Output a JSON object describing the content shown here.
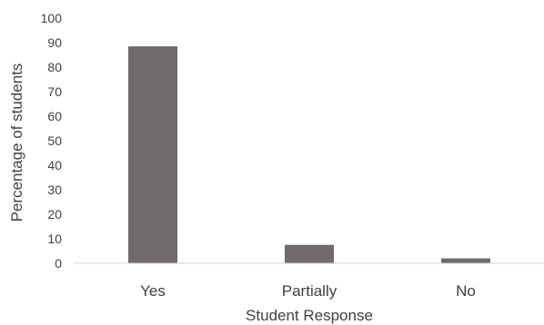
{
  "chart_data": {
    "type": "bar",
    "categories": [
      "Yes",
      "Partially",
      "No"
    ],
    "values": [
      88.5,
      7.5,
      2
    ],
    "xlabel": "Student Response",
    "ylabel": "Percentage of students",
    "ylim": [
      0,
      100
    ],
    "yticks": [
      0,
      10,
      20,
      30,
      40,
      50,
      60,
      70,
      80,
      90,
      100
    ],
    "grid": false,
    "legend": "none",
    "colors": {
      "bar": "#6f6b6b",
      "axis": "#d0d0d0",
      "text": "#404040"
    }
  }
}
